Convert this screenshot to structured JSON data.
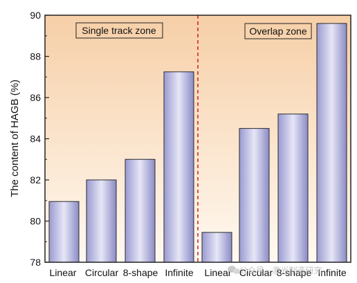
{
  "chart_data": {
    "type": "bar",
    "ylabel": "The content of HAGB (%)",
    "ylim": [
      78,
      90
    ],
    "yticks": [
      "78",
      "80",
      "82",
      "84",
      "86",
      "88",
      "90"
    ],
    "zones": [
      {
        "label": "Single track zone",
        "categories": [
          "Linear",
          "Circular",
          "8-shape",
          "Infinite"
        ],
        "values": [
          80.95,
          82.0,
          83.0,
          87.25
        ]
      },
      {
        "label": "Overlap zone",
        "categories": [
          "Linear",
          "Circular",
          "8-shape",
          "Infinite"
        ],
        "values": [
          79.45,
          84.5,
          85.2,
          89.6
        ]
      }
    ],
    "grid": false,
    "divider_style": "red dashed vertical line"
  },
  "colors": {
    "background_gradient": [
      "#f6cfa7",
      "#fff9f1"
    ],
    "bar_fill": [
      "#9a9ad0",
      "#e6e6f7",
      "#8b8bc6"
    ],
    "bar_stroke": "#2a2a2a",
    "divider": "#d01818"
  },
  "watermark": {
    "icon": "wechat-icon",
    "text": "公众号 · 激光制造研究"
  }
}
